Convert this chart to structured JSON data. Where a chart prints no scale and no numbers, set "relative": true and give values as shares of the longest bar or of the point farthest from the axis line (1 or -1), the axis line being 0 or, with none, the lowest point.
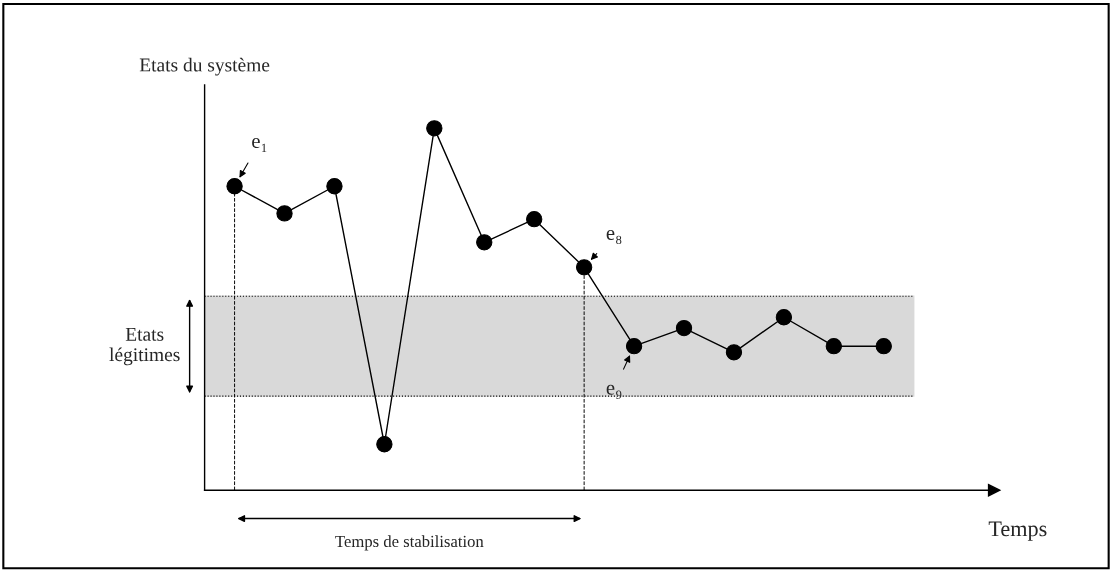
{
  "chart_data": {
    "type": "line",
    "relative": true,
    "xlabel": "Temps",
    "ylabel": "Etats du système",
    "categories": [
      null,
      null,
      null,
      null,
      null,
      null,
      null,
      null,
      null,
      null,
      null,
      null,
      null,
      null
    ],
    "marker": "circle",
    "line_style": "solid",
    "series": [
      {
        "color": "#000000",
        "values": [
          0.84,
          0.765,
          0.84,
          0.127,
          1,
          0.685,
          0.749,
          0.616,
          0.398,
          0.448,
          0.381,
          0.478,
          0.398,
          0.398
        ]
      }
    ],
    "bands": [
      {
        "axis": "y",
        "from": 0.26,
        "to": 0.536,
        "label": "Etats\nlégitimes",
        "color": "#d9d9d9"
      }
    ],
    "annotations": [
      "e₁",
      "e₈",
      "e₉",
      "Temps de stabilisation"
    ]
  }
}
